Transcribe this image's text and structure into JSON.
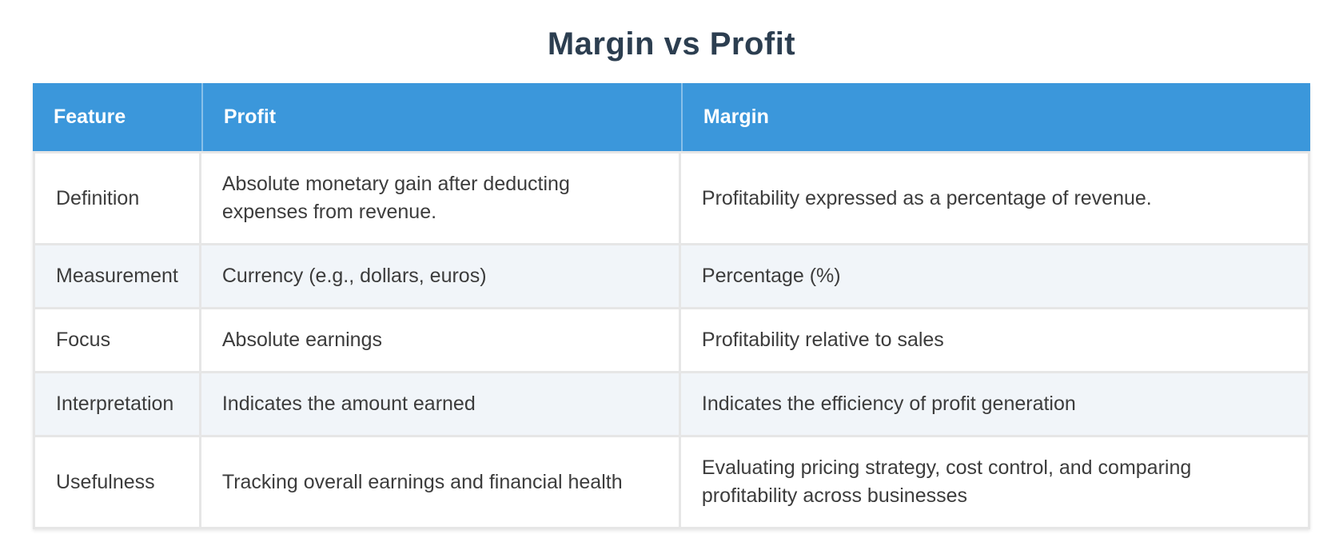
{
  "chart_data": {
    "type": "table",
    "title": "Margin vs Profit",
    "columns": [
      "Feature",
      "Profit",
      "Margin"
    ],
    "rows": [
      [
        "Definition",
        "Absolute monetary gain after deducting expenses from revenue.",
        "Profitability expressed as a percentage of revenue."
      ],
      [
        "Measurement",
        "Currency (e.g., dollars, euros)",
        "Percentage (%)"
      ],
      [
        "Focus",
        "Absolute earnings",
        "Profitability relative to sales"
      ],
      [
        "Interpretation",
        "Indicates the amount earned",
        "Indicates the efficiency of profit generation"
      ],
      [
        "Usefulness",
        "Tracking overall earnings and financial health",
        "Evaluating pricing strategy, cost control, and comparing profitability across businesses"
      ]
    ],
    "layout": {
      "header_position": "top",
      "alternating_row_indices": [
        1,
        3
      ],
      "title_position": "top-center"
    }
  },
  "colors": {
    "header_bg": "#3b97db",
    "header_text": "#ffffff",
    "header_divider": "rgba(255,255,255,0.40)",
    "alt_row_bg": "#f1f5f9",
    "row_bg": "#ffffff",
    "grid_border": "#e6e6e6",
    "title_text": "#2c3e50",
    "body_text": "#3c3c3c"
  }
}
